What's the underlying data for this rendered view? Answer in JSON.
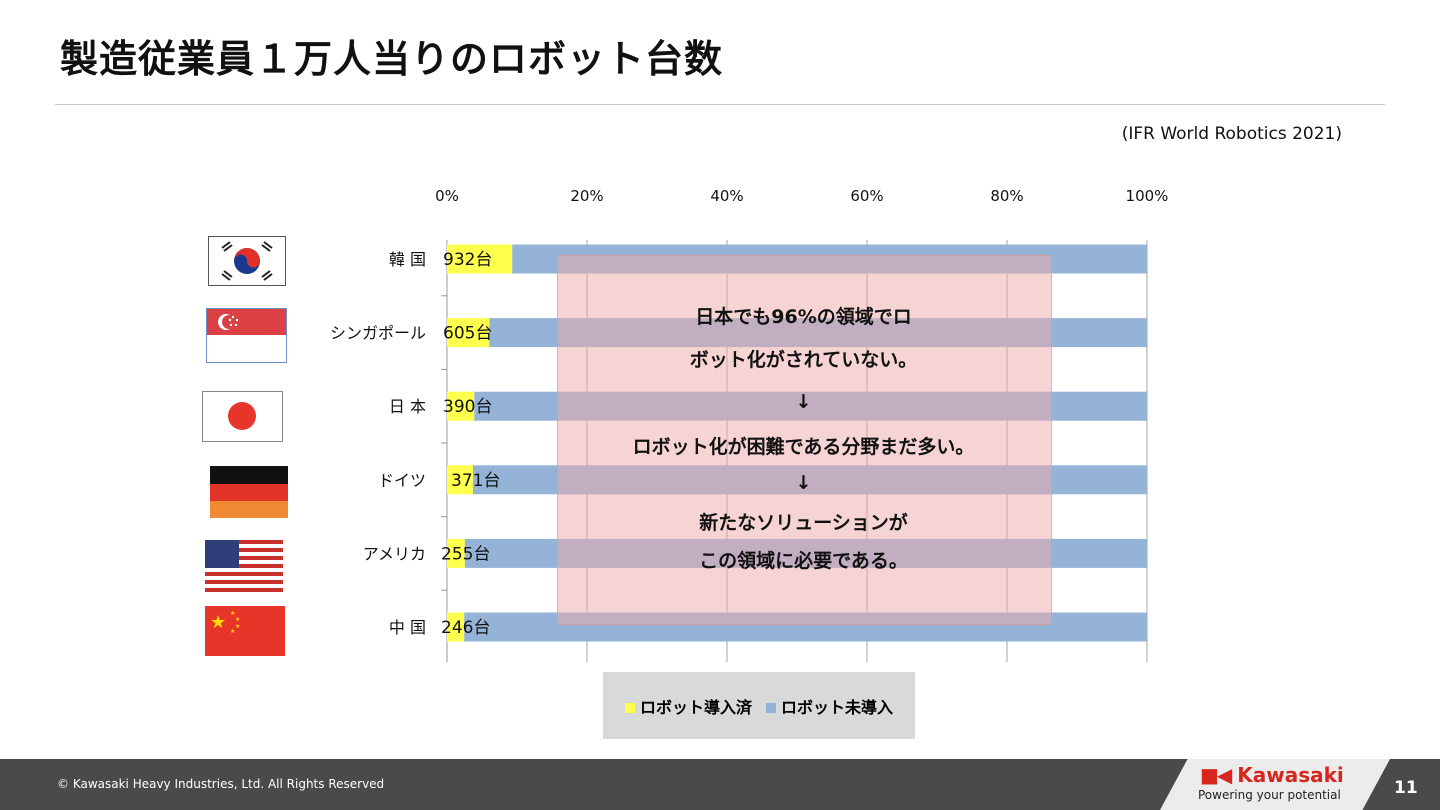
{
  "title": "製造従業員１万人当りのロボット台数",
  "source": "(IFR World Robotics 2021)",
  "chart_data": {
    "type": "bar",
    "orientation": "horizontal",
    "stacked": "100%",
    "categories": [
      "韓 国",
      "シンガポール",
      "日 本",
      "ドイツ",
      "アメリカ",
      "中 国"
    ],
    "data_labels": [
      "932台",
      "605台",
      "390台",
      "371台",
      "255台",
      "246台"
    ],
    "series": [
      {
        "name": "ロボット導入済",
        "color": "#ffff4d",
        "values": [
          932,
          605,
          390,
          371,
          255,
          246
        ]
      },
      {
        "name": "ロボット未導入",
        "color": "#95b3d7",
        "values": [
          9068,
          9395,
          9610,
          9629,
          9745,
          9754
        ]
      }
    ],
    "x_ticks": [
      "0%",
      "20%",
      "40%",
      "60%",
      "80%",
      "100%"
    ],
    "xlim": [
      0,
      100
    ],
    "grid": true,
    "legend_position": "bottom"
  },
  "flags": [
    "korea-flag",
    "singapore-flag",
    "japan-flag",
    "germany-flag",
    "usa-flag",
    "china-flag"
  ],
  "overlay": {
    "lines": [
      "日本でも96%の領域でロ",
      "ボット化がされていない。",
      "↓",
      "ロボット化が困難である分野まだ多い。",
      "↓",
      "新たなソリューションが",
      "この領域に必要である。"
    ]
  },
  "footer": {
    "copyright": "© Kawasaki Heavy Industries, Ltd. All Rights Reserved",
    "brand": "Kawasaki",
    "tagline": "Powering your potential",
    "page": "11"
  }
}
